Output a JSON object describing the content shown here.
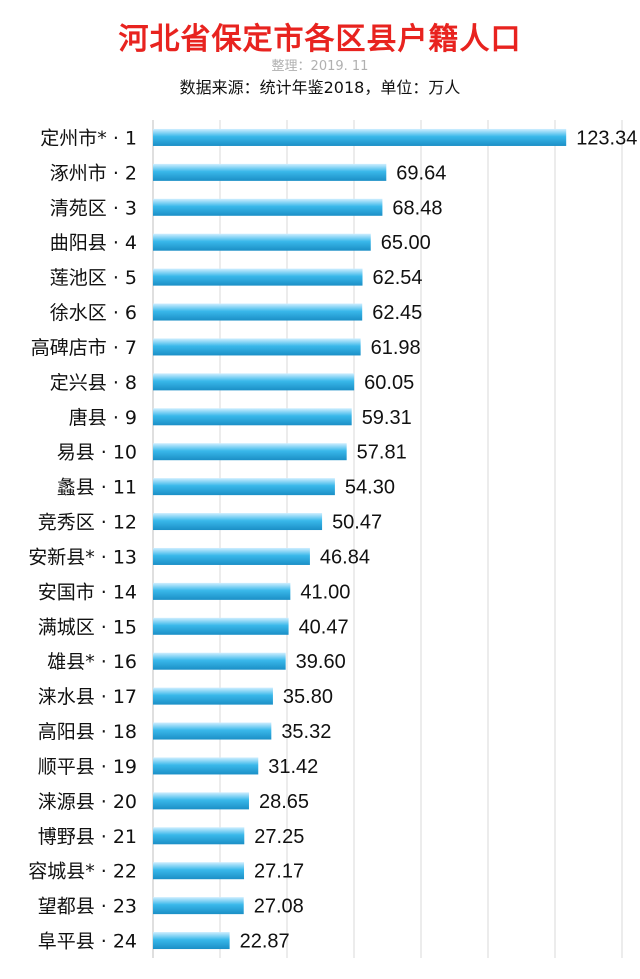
{
  "header": {
    "title": "河北省保定市各区县户籍人口",
    "note": "整理：2019. 11",
    "source": "数据来源：统计年鉴2018，单位：万人"
  },
  "chart_data": {
    "type": "bar",
    "orientation": "horizontal",
    "title": "河北省保定市各区县户籍人口",
    "unit": "万人",
    "categories": [
      "定州市* · 1",
      "涿州市 · 2",
      "清苑区 · 3",
      "曲阳县 · 4",
      "莲池区 · 5",
      "徐水区 · 6",
      "高碑店市 · 7",
      "定兴县 · 8",
      "唐县 · 9",
      "易县 · 10",
      "蠡县 · 11",
      "竞秀区 · 12",
      "安新县* · 13",
      "安国市 · 14",
      "满城区 · 15",
      "雄县* · 16",
      "涞水县 · 17",
      "高阳县 · 18",
      "顺平县 · 19",
      "涞源县 · 20",
      "博野县 · 21",
      "容城县* · 22",
      "望都县 · 23",
      "阜平县 · 24"
    ],
    "values": [
      123.34,
      69.64,
      68.48,
      65.0,
      62.54,
      62.45,
      61.98,
      60.05,
      59.31,
      57.81,
      54.3,
      50.47,
      46.84,
      41.0,
      40.47,
      39.6,
      35.8,
      35.32,
      31.42,
      28.65,
      27.25,
      27.17,
      27.08,
      22.87
    ],
    "value_labels": [
      "123.34",
      "69.64",
      "68.48",
      "65.00",
      "62.54",
      "62.45",
      "61.98",
      "60.05",
      "59.31",
      "57.81",
      "54.30",
      "50.47",
      "46.84",
      "41.00",
      "40.47",
      "39.60",
      "35.80",
      "35.32",
      "31.42",
      "28.65",
      "27.25",
      "27.17",
      "27.08",
      "22.87"
    ],
    "xlim": [
      0,
      140
    ],
    "grid": true,
    "legend": "none",
    "colors": {
      "bar_light": "#cfeeff",
      "bar_mid": "#39b8ea",
      "bar_dark": "#1b8fc6",
      "grid": "#d9d9d9",
      "title": "#e8231f"
    }
  }
}
